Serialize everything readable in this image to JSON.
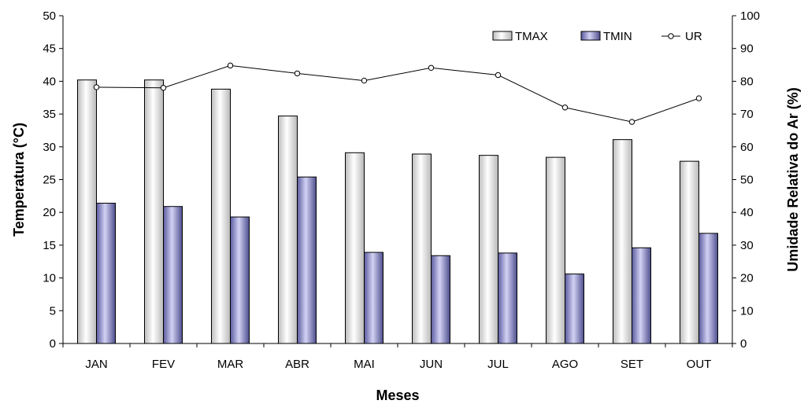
{
  "chart_data": {
    "type": "bar",
    "categories": [
      "JAN",
      "FEV",
      "MAR",
      "ABR",
      "MAI",
      "JUN",
      "JUL",
      "AGO",
      "SET",
      "OUT"
    ],
    "series": [
      {
        "name": "TMAX",
        "type": "bar",
        "axis": "left",
        "color": "#e6e6e6",
        "values": [
          40.2,
          40.2,
          38.8,
          34.7,
          29.1,
          28.9,
          28.7,
          28.4,
          31.1,
          27.8
        ]
      },
      {
        "name": "TMIN",
        "type": "bar",
        "axis": "left",
        "color": "#9b9bd6",
        "values": [
          21.4,
          20.9,
          19.3,
          25.4,
          13.9,
          13.4,
          13.8,
          10.6,
          14.6,
          16.8
        ]
      },
      {
        "name": "UR",
        "type": "line",
        "axis": "right",
        "color": "#000000",
        "values": [
          78.2,
          78.0,
          84.8,
          82.4,
          80.2,
          84.1,
          81.9,
          72.0,
          67.6,
          74.8
        ]
      }
    ],
    "xlabel": "Meses",
    "ylabel": "Temperatura (°C)",
    "y2label": "Umidade Relativa do Ar (%)",
    "ylim": [
      0,
      50
    ],
    "y2lim": [
      0,
      100
    ],
    "yticks": [
      0,
      5,
      10,
      15,
      20,
      25,
      30,
      35,
      40,
      45,
      50
    ],
    "y2ticks": [
      0,
      10,
      20,
      30,
      40,
      50,
      60,
      70,
      80,
      90,
      100
    ],
    "grid": false,
    "legend": "top-right"
  }
}
